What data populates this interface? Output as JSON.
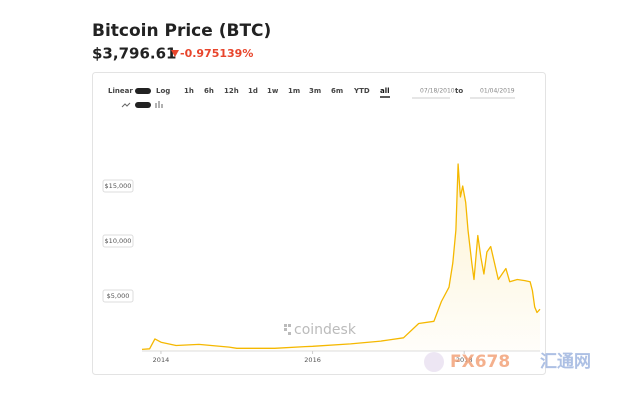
{
  "header": {
    "title": "Bitcoin Price (BTC)",
    "price": "$3,796.61",
    "change": "-0.975139%"
  },
  "controls": {
    "scales": [
      "Linear",
      "Log"
    ],
    "ranges": [
      "1h",
      "6h",
      "12h",
      "1d",
      "1w",
      "1m",
      "3m",
      "6m",
      "YTD",
      "all"
    ],
    "from": "07/18/2010",
    "to_label": "to",
    "to": "01/04/2019"
  },
  "watermarks": [
    "coindesk",
    "FX678",
    "汇通网"
  ],
  "chart_data": {
    "type": "line",
    "color": "#f5b800",
    "x": [
      2013.75,
      2013.85,
      2013.92,
      2014.0,
      2014.2,
      2014.5,
      2014.9,
      2015.0,
      2015.5,
      2015.9,
      2016.0,
      2016.5,
      2016.9,
      2017.0,
      2017.2,
      2017.4,
      2017.6,
      2017.7,
      2017.8,
      2017.85,
      2017.89,
      2017.92,
      2017.95,
      2017.98,
      2018.02,
      2018.05,
      2018.1,
      2018.13,
      2018.18,
      2018.22,
      2018.26,
      2018.3,
      2018.35,
      2018.4,
      2018.45,
      2018.55,
      2018.6,
      2018.7,
      2018.8,
      2018.87,
      2018.9,
      2018.93,
      2018.96,
      2019.0
    ],
    "values": [
      150,
      200,
      1100,
      800,
      500,
      600,
      350,
      250,
      250,
      400,
      430,
      650,
      900,
      1000,
      1200,
      2500,
      2700,
      4500,
      5800,
      8000,
      11000,
      17000,
      14000,
      15000,
      13500,
      11000,
      8000,
      6500,
      10500,
      8500,
      7000,
      9000,
      9500,
      8000,
      6500,
      7500,
      6300,
      6500,
      6400,
      6300,
      5500,
      4000,
      3500,
      3800
    ],
    "xlim": [
      2013.75,
      2019.0
    ],
    "xticks": [
      2014,
      2016,
      2018
    ],
    "ylim": [
      0,
      19000
    ],
    "yticks": [
      {
        "value": 5000,
        "label": "$5,000"
      },
      {
        "value": 10000,
        "label": "$10,000"
      },
      {
        "value": 15000,
        "label": "$15,000"
      }
    ]
  }
}
